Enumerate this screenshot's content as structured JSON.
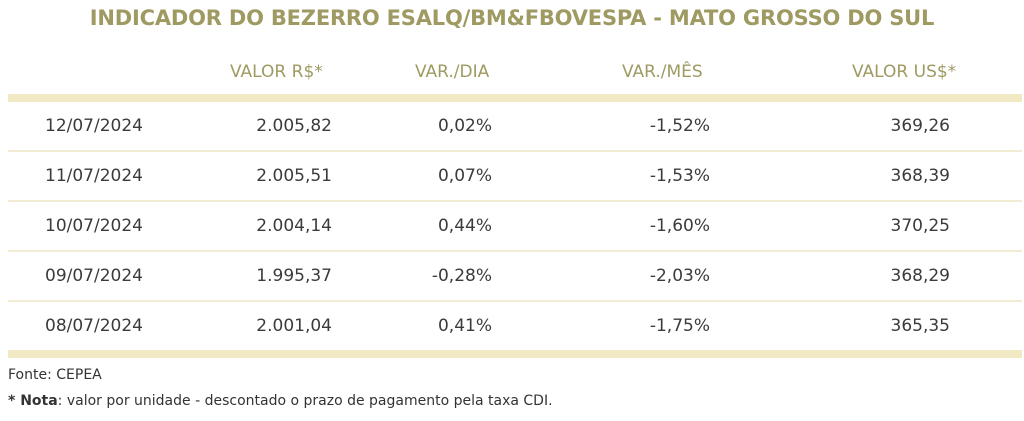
{
  "title": "INDICADOR DO BEZERRO ESALQ/BM&FBOVESPA - MATO GROSSO DO SUL",
  "headers": {
    "valor_brl": "VALOR R$*",
    "var_dia": "VAR./DIA",
    "var_mes": "VAR./MÊS",
    "valor_usd": "VALOR US$*"
  },
  "rows": [
    {
      "date": "12/07/2024",
      "valor_brl": "2.005,82",
      "var_dia": "0,02%",
      "var_mes": "-1,52%",
      "valor_usd": "369,26"
    },
    {
      "date": "11/07/2024",
      "valor_brl": "2.005,51",
      "var_dia": "0,07%",
      "var_mes": "-1,53%",
      "valor_usd": "368,39"
    },
    {
      "date": "10/07/2024",
      "valor_brl": "2.004,14",
      "var_dia": "0,44%",
      "var_mes": "-1,60%",
      "valor_usd": "370,25"
    },
    {
      "date": "09/07/2024",
      "valor_brl": "1.995,37",
      "var_dia": "-0,28%",
      "var_mes": "-2,03%",
      "valor_usd": "368,29"
    },
    {
      "date": "08/07/2024",
      "valor_brl": "2.001,04",
      "var_dia": "0,41%",
      "var_mes": "-1,75%",
      "valor_usd": "365,35"
    }
  ],
  "footer": {
    "source": "Fonte: CEPEA",
    "note_label": "* Nota",
    "note_text": ": valor por unidade - descontado o prazo de pagamento pela taxa CDI."
  },
  "colors": {
    "accent": "#9e9a62",
    "bar": "#f0e9c4"
  }
}
